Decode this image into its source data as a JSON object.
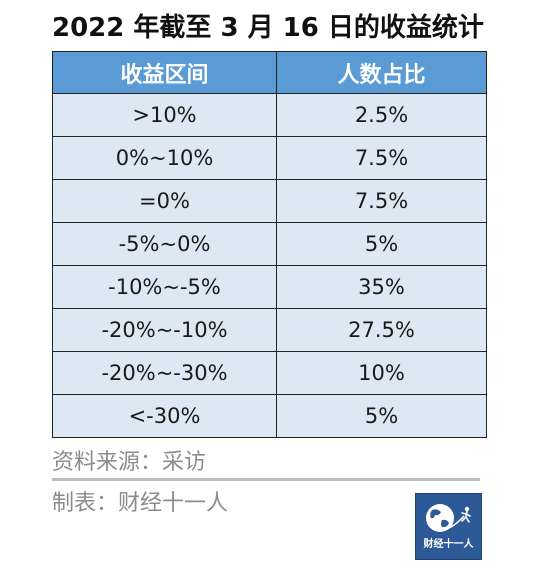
{
  "title": "2022 年截至 3 月 16 日的收益统计",
  "table": {
    "headers": [
      "收益区间",
      "人数占比"
    ],
    "rows": [
      [
        ">10%",
        "2.5%"
      ],
      [
        "0%~10%",
        "7.5%"
      ],
      [
        "=0%",
        "7.5%"
      ],
      [
        "-5%~0%",
        "5%"
      ],
      [
        "-10%~-5%",
        "35%"
      ],
      [
        "-20%~-10%",
        "27.5%"
      ],
      [
        "-20%~-30%",
        "10%"
      ],
      [
        "<-30%",
        "5%"
      ]
    ]
  },
  "footer": {
    "source": "资料来源：采访",
    "maker": "制表：财经十一人"
  },
  "logo": {
    "text": "财经十一人",
    "icon": "globe-runner-icon",
    "bg_color": "#2d5a96"
  },
  "colors": {
    "header_bg": "#5a9bd5",
    "cell_bg": "#dce8f4"
  }
}
